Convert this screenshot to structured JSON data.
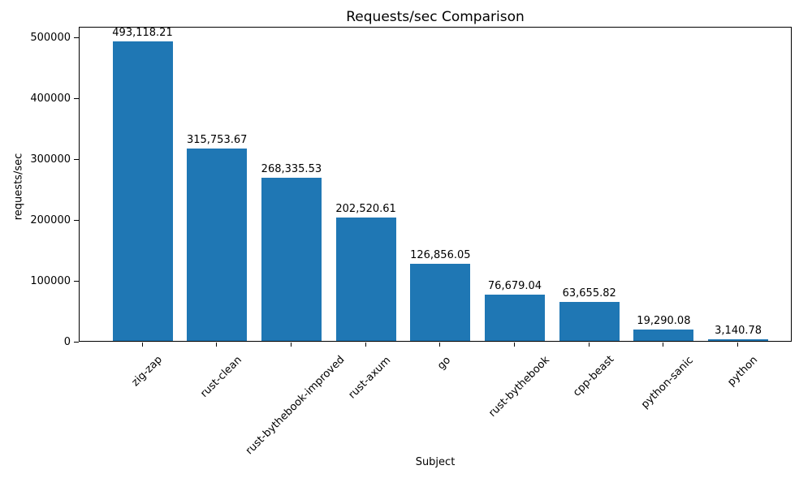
{
  "chart_data": {
    "type": "bar",
    "title": "Requests/sec Comparison",
    "xlabel": "Subject",
    "ylabel": "requests/sec",
    "categories": [
      "zig-zap",
      "rust-clean",
      "rust-bythebook-improved",
      "rust-axum",
      "go",
      "rust-bythebook",
      "cpp-beast",
      "python-sanic",
      "python"
    ],
    "values": [
      493118.21,
      315753.67,
      268335.53,
      202520.61,
      126856.05,
      76679.04,
      63655.82,
      19290.08,
      3140.78
    ],
    "bar_labels": [
      "493,118.21",
      "315,753.67",
      "268,335.53",
      "202,520.61",
      "126,856.05",
      "76,679.04",
      "63,655.82",
      "19,290.08",
      "3,140.78"
    ],
    "yticks": [
      0,
      100000,
      200000,
      300000,
      400000,
      500000
    ],
    "ylim": [
      0,
      517774
    ],
    "bar_color": "#1f77b4",
    "grid": false,
    "legend": "none",
    "x_tick_rotation": 45
  }
}
